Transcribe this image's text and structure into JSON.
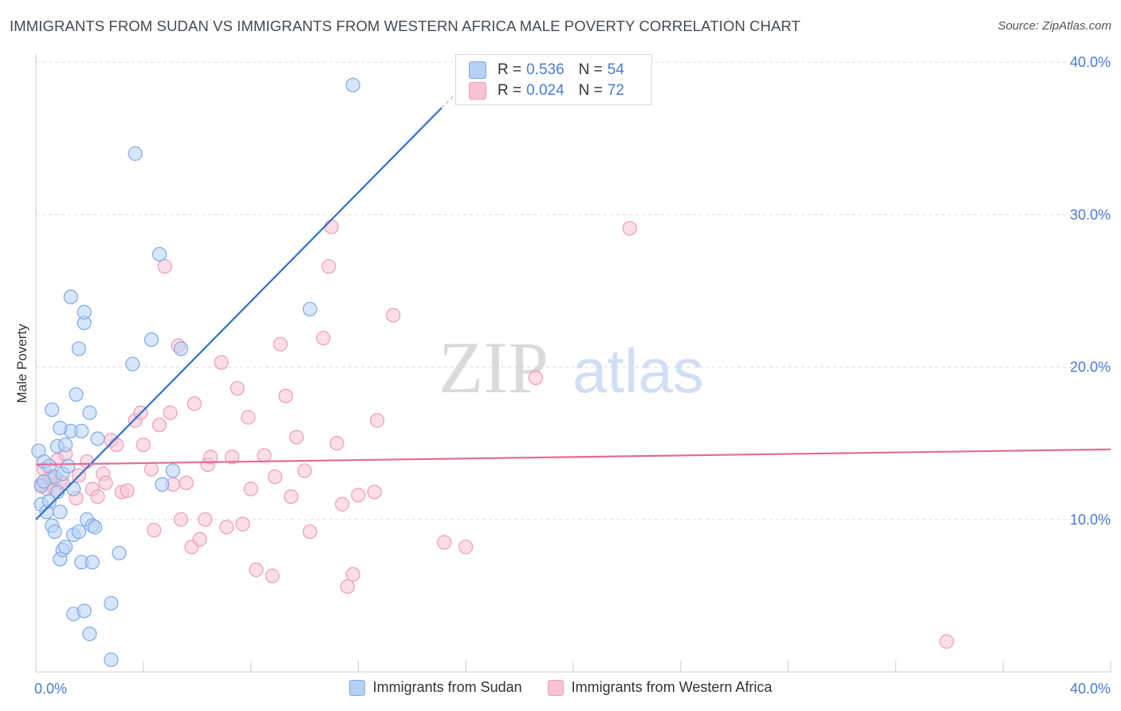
{
  "title": "IMMIGRANTS FROM SUDAN VS IMMIGRANTS FROM WESTERN AFRICA MALE POVERTY CORRELATION CHART",
  "source": "Source: ZipAtlas.com",
  "watermark": {
    "zip": "ZIP",
    "atlas": "atlas"
  },
  "colors": {
    "blue_fill": "#b7d1f5",
    "blue_edge": "#7ea9e6",
    "blue_line": "#2f6fcf",
    "pink_fill": "#f8c3d4",
    "pink_edge": "#ee9bb6",
    "pink_line": "#e26d95",
    "axis_text": "#4a7bd0",
    "grid": "#dddddd"
  },
  "stats": {
    "sudan": {
      "r_label": "R =",
      "r": "0.536",
      "n_label": "N =",
      "n": "54"
    },
    "wafrica": {
      "r_label": "R =",
      "r": "0.024",
      "n_label": "N =",
      "n": "72"
    }
  },
  "chart_data": {
    "type": "scatter",
    "title": "IMMIGRANTS FROM SUDAN VS IMMIGRANTS FROM WESTERN AFRICA MALE POVERTY CORRELATION CHART",
    "xlabel": "",
    "ylabel": "Male Poverty",
    "xlim": [
      0,
      40
    ],
    "ylim": [
      0,
      40
    ],
    "x_ticks": [
      "0.0%",
      "40.0%"
    ],
    "y_ticks": [
      {
        "value": 10,
        "label": "10.0%"
      },
      {
        "value": 20,
        "label": "20.0%"
      },
      {
        "value": 30,
        "label": "30.0%"
      },
      {
        "value": 40,
        "label": "40.0%"
      }
    ],
    "legend_position": "bottom",
    "series": [
      {
        "name": "Immigrants from Sudan",
        "color": "blue",
        "trend": {
          "x": [
            0,
            15.1
          ],
          "y": [
            10.0,
            37.0
          ],
          "dash_to": [
            16.3,
            39.1
          ]
        },
        "points": [
          [
            0.1,
            14.5
          ],
          [
            0.2,
            12.2
          ],
          [
            0.2,
            11.0
          ],
          [
            0.3,
            13.8
          ],
          [
            0.4,
            10.5
          ],
          [
            0.5,
            13.5
          ],
          [
            0.5,
            11.2
          ],
          [
            0.6,
            9.6
          ],
          [
            0.6,
            17.2
          ],
          [
            0.7,
            12.8
          ],
          [
            0.7,
            9.2
          ],
          [
            0.8,
            14.8
          ],
          [
            0.8,
            11.8
          ],
          [
            0.9,
            7.4
          ],
          [
            0.9,
            10.5
          ],
          [
            1.0,
            13.0
          ],
          [
            1.0,
            8.0
          ],
          [
            1.1,
            14.9
          ],
          [
            1.1,
            8.2
          ],
          [
            1.2,
            13.5
          ],
          [
            1.3,
            24.6
          ],
          [
            1.3,
            15.8
          ],
          [
            1.4,
            12.0
          ],
          [
            1.4,
            9.0
          ],
          [
            1.4,
            3.8
          ],
          [
            1.5,
            18.2
          ],
          [
            1.6,
            21.2
          ],
          [
            1.6,
            9.2
          ],
          [
            1.7,
            7.2
          ],
          [
            1.7,
            15.8
          ],
          [
            1.8,
            22.9
          ],
          [
            1.8,
            4.0
          ],
          [
            1.8,
            23.6
          ],
          [
            1.9,
            10.0
          ],
          [
            2.0,
            17.0
          ],
          [
            2.0,
            2.5
          ],
          [
            2.1,
            9.6
          ],
          [
            2.1,
            7.2
          ],
          [
            2.2,
            9.5
          ],
          [
            2.3,
            15.3
          ],
          [
            2.8,
            4.5
          ],
          [
            2.8,
            0.8
          ],
          [
            3.1,
            7.8
          ],
          [
            3.6,
            20.2
          ],
          [
            3.7,
            34.0
          ],
          [
            4.3,
            21.8
          ],
          [
            4.6,
            27.4
          ],
          [
            4.7,
            12.3
          ],
          [
            5.1,
            13.2
          ],
          [
            5.4,
            21.2
          ],
          [
            10.2,
            23.8
          ],
          [
            11.8,
            38.5
          ],
          [
            0.3,
            12.5
          ],
          [
            0.9,
            16.0
          ]
        ]
      },
      {
        "name": "Immigrants from Western Africa",
        "color": "pink",
        "trend": {
          "x": [
            0,
            40
          ],
          "y": [
            13.6,
            14.6
          ]
        },
        "points": [
          [
            0.2,
            12.3
          ],
          [
            0.3,
            13.3
          ],
          [
            0.4,
            12.0
          ],
          [
            0.5,
            12.7
          ],
          [
            0.6,
            12.8
          ],
          [
            0.7,
            12.0
          ],
          [
            0.8,
            13.9
          ],
          [
            0.9,
            12.5
          ],
          [
            1.0,
            12.4
          ],
          [
            1.1,
            14.3
          ],
          [
            1.5,
            11.4
          ],
          [
            1.6,
            12.9
          ],
          [
            1.9,
            13.8
          ],
          [
            2.1,
            12.0
          ],
          [
            2.3,
            11.5
          ],
          [
            2.5,
            13.0
          ],
          [
            2.6,
            12.4
          ],
          [
            2.8,
            15.2
          ],
          [
            3.0,
            14.9
          ],
          [
            3.2,
            11.8
          ],
          [
            3.4,
            11.9
          ],
          [
            3.7,
            16.5
          ],
          [
            3.9,
            17.0
          ],
          [
            4.0,
            14.9
          ],
          [
            4.3,
            13.3
          ],
          [
            4.4,
            9.3
          ],
          [
            4.6,
            16.2
          ],
          [
            4.8,
            26.6
          ],
          [
            5.0,
            17.0
          ],
          [
            5.1,
            12.3
          ],
          [
            5.3,
            21.4
          ],
          [
            5.4,
            10.0
          ],
          [
            5.6,
            12.4
          ],
          [
            5.8,
            8.2
          ],
          [
            5.9,
            17.6
          ],
          [
            6.1,
            8.7
          ],
          [
            6.3,
            10.0
          ],
          [
            6.4,
            13.6
          ],
          [
            6.5,
            14.1
          ],
          [
            6.9,
            20.3
          ],
          [
            7.1,
            9.5
          ],
          [
            7.3,
            14.1
          ],
          [
            7.5,
            18.6
          ],
          [
            7.7,
            9.7
          ],
          [
            7.9,
            16.7
          ],
          [
            8.0,
            12.0
          ],
          [
            8.2,
            6.7
          ],
          [
            8.5,
            14.2
          ],
          [
            8.8,
            6.3
          ],
          [
            8.9,
            12.8
          ],
          [
            9.1,
            21.5
          ],
          [
            9.3,
            18.1
          ],
          [
            9.5,
            11.5
          ],
          [
            9.7,
            15.4
          ],
          [
            10.0,
            13.2
          ],
          [
            10.2,
            9.2
          ],
          [
            10.7,
            21.9
          ],
          [
            10.9,
            26.6
          ],
          [
            11.0,
            29.2
          ],
          [
            11.2,
            15.0
          ],
          [
            11.4,
            11.0
          ],
          [
            11.6,
            5.6
          ],
          [
            11.8,
            6.4
          ],
          [
            12.0,
            11.6
          ],
          [
            12.6,
            11.8
          ],
          [
            12.7,
            16.5
          ],
          [
            13.3,
            23.4
          ],
          [
            15.2,
            8.5
          ],
          [
            16.0,
            8.2
          ],
          [
            18.6,
            19.3
          ],
          [
            22.1,
            29.1
          ],
          [
            33.9,
            2.0
          ]
        ]
      }
    ]
  },
  "legend": {
    "sudan": "Immigrants from Sudan",
    "wafrica": "Immigrants from Western Africa"
  }
}
